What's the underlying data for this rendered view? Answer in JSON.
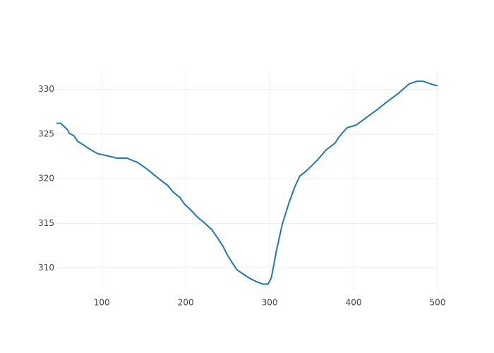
{
  "chart_data": {
    "type": "line",
    "x": [
      46,
      51,
      59,
      61,
      67,
      71,
      78,
      84,
      95,
      105,
      118,
      130,
      143,
      155,
      168,
      179,
      185,
      193,
      199,
      206,
      214,
      223,
      231,
      237,
      244,
      250,
      256,
      261,
      269,
      277,
      286,
      292,
      298,
      302,
      308,
      315,
      323,
      330,
      336,
      344,
      357,
      367,
      378,
      382,
      392,
      403,
      416,
      429,
      441,
      454,
      466,
      475,
      483,
      492,
      500
    ],
    "series": [
      {
        "color": "#1f77b4",
        "values": [
          326.2,
          326.2,
          325.5,
          325.1,
          324.8,
          324.2,
          323.8,
          323.4,
          322.8,
          322.6,
          322.3,
          322.3,
          321.8,
          321.0,
          320.0,
          319.2,
          318.5,
          317.9,
          317.1,
          316.5,
          315.7,
          315.0,
          314.3,
          313.5,
          312.5,
          311.4,
          310.5,
          309.8,
          309.3,
          308.8,
          308.4,
          308.2,
          308.2,
          308.9,
          311.9,
          314.9,
          317.3,
          319.1,
          320.3,
          320.9,
          322.1,
          323.2,
          324.0,
          324.6,
          325.7,
          326.0,
          326.9,
          327.8,
          328.7,
          329.6,
          330.6,
          330.9,
          330.9,
          330.6,
          330.4
        ]
      }
    ],
    "xlim": [
      46,
      500
    ],
    "ylim": [
      307.6,
      332.1
    ],
    "xticks": [
      100,
      200,
      300,
      400,
      500
    ],
    "yticks": [
      310,
      315,
      320,
      325,
      330
    ],
    "grid": true
  }
}
